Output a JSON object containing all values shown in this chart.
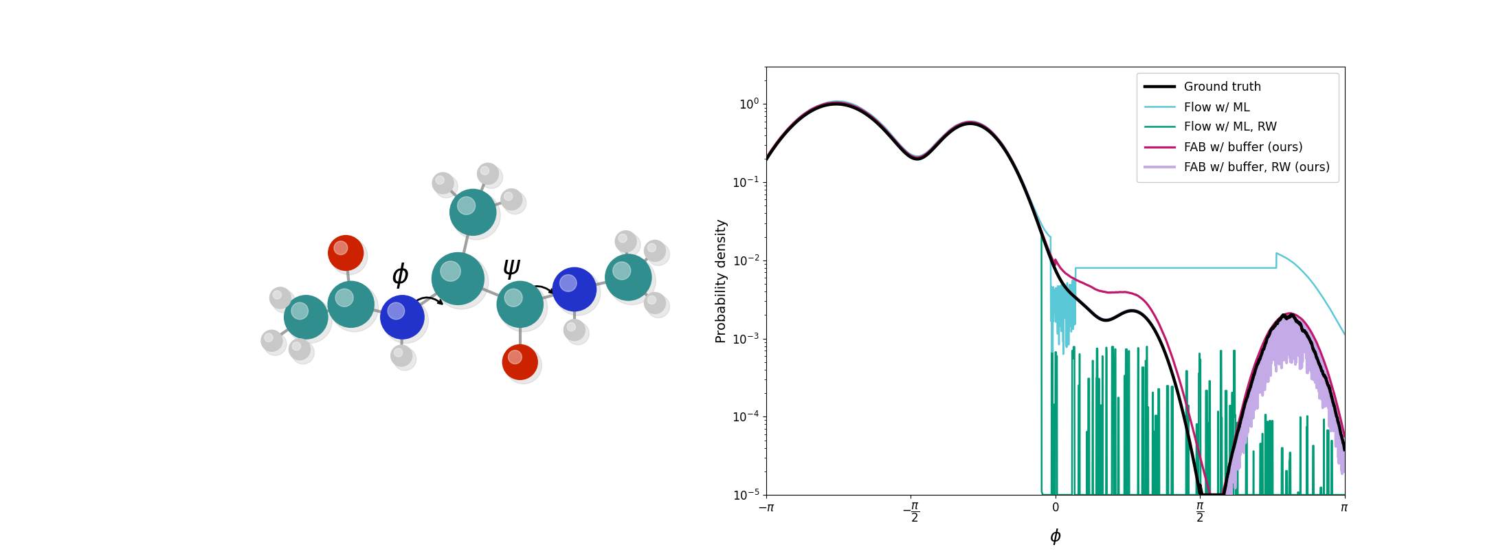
{
  "ylabel": "Probability density",
  "xlabel": "ϕ",
  "xlim": [
    -3.14159265,
    3.14159265
  ],
  "ylim": [
    1e-05,
    3.0
  ],
  "xticks": [
    -3.14159265,
    -1.5707963,
    0,
    1.5707963,
    3.14159265
  ],
  "legend_entries": [
    {
      "label": "Ground truth",
      "color": "#000000",
      "lw": 3.2
    },
    {
      "label": "Flow w/ ML",
      "color": "#5bc8d8",
      "lw": 1.8
    },
    {
      "label": "Flow w/ ML, RW",
      "color": "#009b77",
      "lw": 1.8
    },
    {
      "label": "FAB w/ buffer (ours)",
      "color": "#c0186a",
      "lw": 2.3
    },
    {
      "label": "FAB w/ buffer, RW (ours)",
      "color": "#c5aae8",
      "lw": 2.8
    }
  ],
  "fig_width": 21.74,
  "fig_height": 8.09,
  "seed": 17
}
